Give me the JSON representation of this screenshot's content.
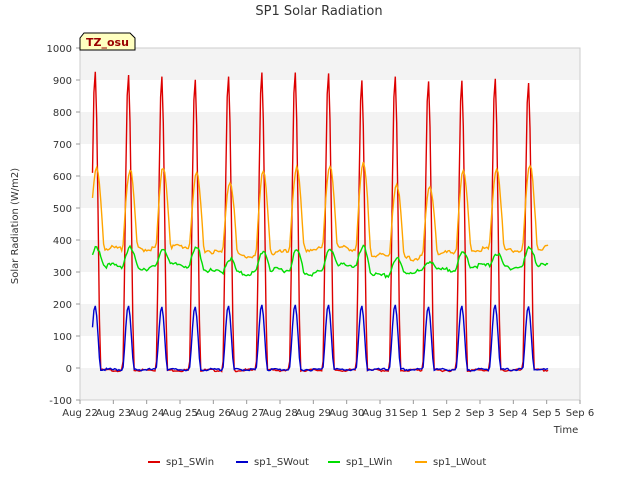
{
  "chart_data": {
    "type": "line",
    "title": "SP1 Solar Radiation",
    "xlabel": "Time",
    "ylabel": "Solar Radiation (W/m2)",
    "ylim": [
      -100,
      1000
    ],
    "yticks": [
      -100,
      0,
      100,
      200,
      300,
      400,
      500,
      600,
      700,
      800,
      900,
      1000
    ],
    "xlim": [
      0,
      15
    ],
    "xtick_labels": [
      "Aug 22",
      "Aug 23",
      "Aug 24",
      "Aug 25",
      "Aug 26",
      "Aug 27",
      "Aug 28",
      "Aug 29",
      "Aug 30",
      "Aug 31",
      "Sep 1",
      "Sep 2",
      "Sep 3",
      "Sep 4",
      "Sep 5",
      "Sep 6"
    ],
    "grid": "horizontal bands",
    "legend_placement": "bottom",
    "annotation": "TZ_osu",
    "x": [
      0.45,
      1.45,
      2.45,
      3.45,
      4.45,
      5.45,
      6.45,
      7.45,
      8.45,
      9.45,
      10.45,
      11.45,
      12.45,
      13.45
    ],
    "series": [
      {
        "name": "sp1_SWin",
        "color": "#dd0000",
        "kind": "daily_peak",
        "night": -5,
        "values": [
          930,
          920,
          915,
          905,
          915,
          928,
          928,
          925,
          903,
          915,
          900,
          902,
          908,
          895
        ]
      },
      {
        "name": "sp1_SWout",
        "color": "#0000cc",
        "kind": "daily_peak",
        "night": -3,
        "values": [
          195,
          195,
          192,
          192,
          195,
          198,
          198,
          198,
          195,
          198,
          192,
          195,
          198,
          193
        ]
      },
      {
        "name": "sp1_LWin",
        "color": "#00dd00",
        "kind": "daily_level",
        "night_tick": true,
        "day_values": [
          380,
          378,
          378,
          378,
          345,
          370,
          370,
          378,
          380,
          345,
          340,
          362,
          362,
          380
        ],
        "night_values": [
          320,
          325,
          315,
          328,
          305,
          298,
          312,
          298,
          330,
          290,
          305,
          310,
          325,
          318,
          325
        ]
      },
      {
        "name": "sp1_LWout",
        "color": "#ffa500",
        "kind": "daily_level",
        "day_values": [
          625,
          622,
          630,
          608,
          588,
          615,
          628,
          638,
          640,
          580,
          572,
          615,
          628,
          632
        ],
        "night_values": [
          385,
          378,
          375,
          385,
          368,
          352,
          365,
          375,
          380,
          355,
          345,
          365,
          375,
          370,
          380
        ]
      }
    ]
  }
}
